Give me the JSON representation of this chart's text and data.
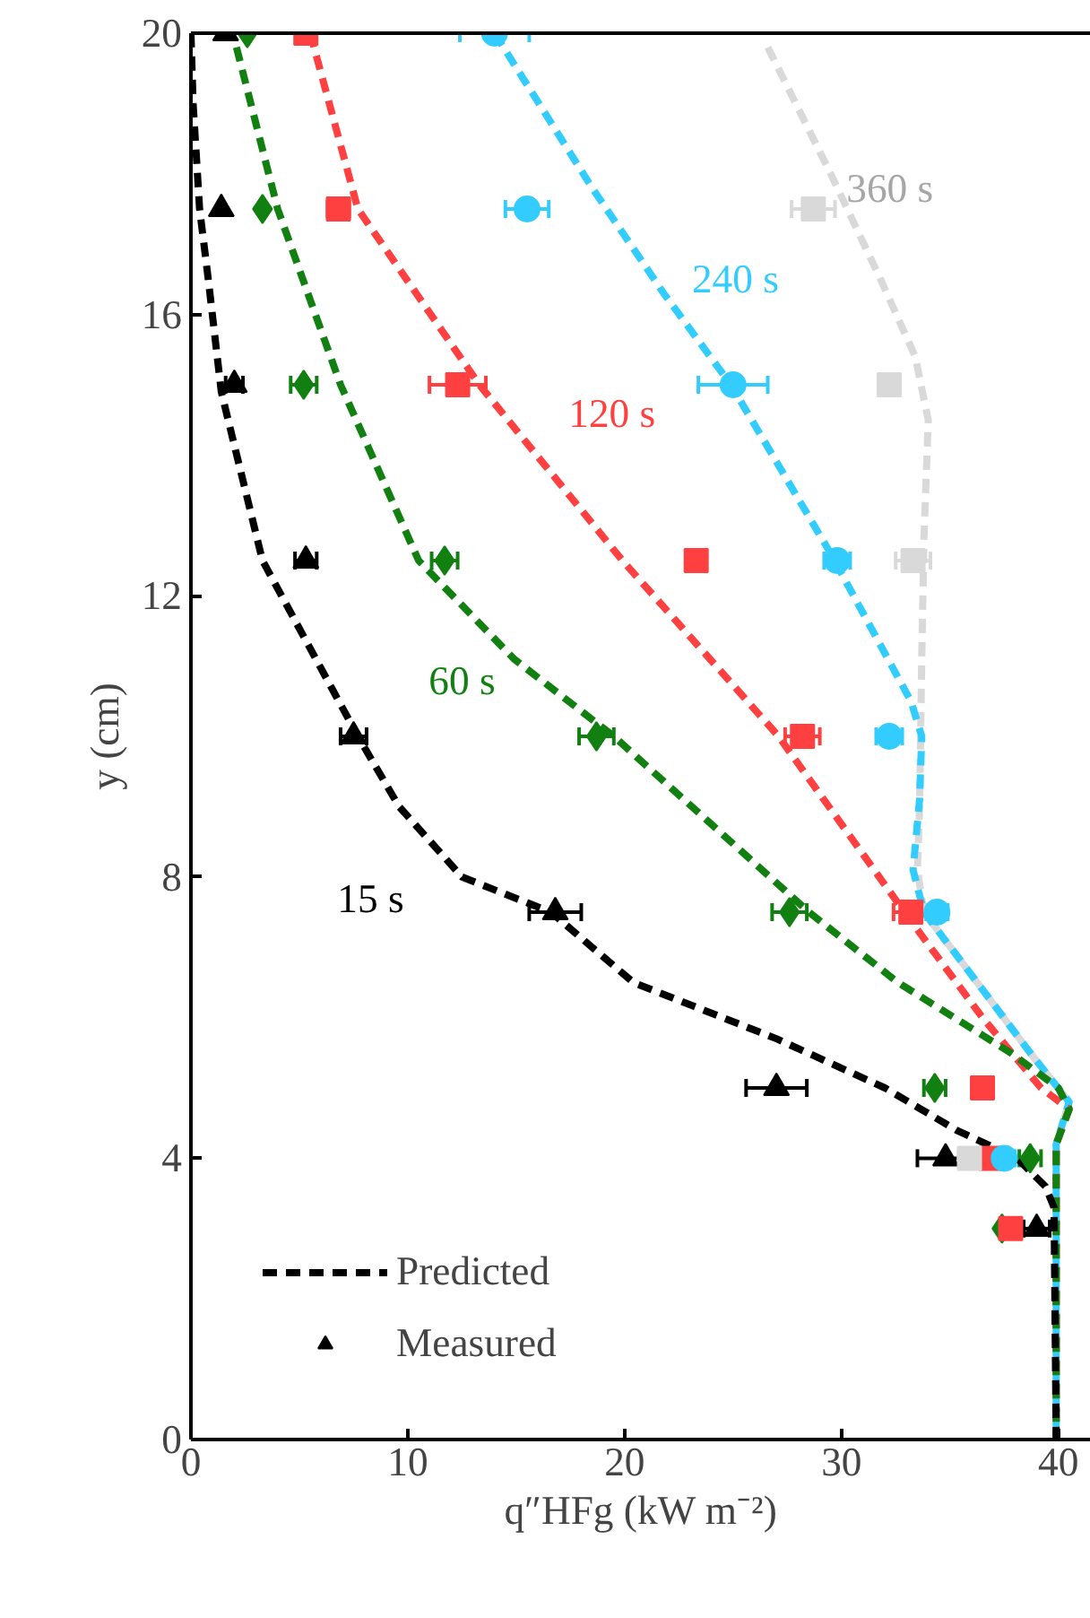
{
  "chart_data": {
    "type": "scatter",
    "xlabel": "q″HFg (kW m⁻²)",
    "ylabel": "y (cm)",
    "xlim": [
      0,
      41.5
    ],
    "ylim": [
      0,
      20
    ],
    "xticks": [
      0,
      10,
      20,
      30,
      40
    ],
    "yticks": [
      0,
      4,
      8,
      12,
      16,
      20
    ],
    "grid": false,
    "legend": "bottom left",
    "series": [
      {
        "type": "line",
        "line_style": "dashed",
        "color": "#d9d9d9",
        "x": [
          26.6,
          29.5,
          31.8,
          33.4,
          34.0,
          33.8,
          33.7,
          33.6,
          33.5,
          33.8,
          36.5,
          38.7,
          40.5,
          39.9,
          39.9
        ],
        "values": [
          19.8,
          18,
          16.5,
          15.4,
          14.5,
          12.8,
          11.1,
          9,
          8.1,
          7.5,
          6.4,
          5.5,
          4.8,
          4.2,
          0
        ]
      },
      {
        "type": "line",
        "line_style": "dashed",
        "color": "#33ccff",
        "x": [
          14.0,
          18.5,
          21.8,
          24.9,
          29.5,
          33.2,
          33.7,
          33.6,
          33.3,
          33.8,
          36.5,
          38.7,
          40.5,
          39.9,
          39.9
        ],
        "values": [
          20,
          17.8,
          16.3,
          15,
          12.6,
          10.5,
          10,
          9.1,
          8.1,
          7.5,
          6.4,
          5.5,
          4.8,
          4.2,
          0
        ]
      },
      {
        "type": "line",
        "line_style": "dashed",
        "color": "#ff4040",
        "x": [
          5.5,
          7.7,
          13.3,
          19.9,
          27.1,
          32.9,
          36.5,
          39.2,
          40.5,
          39.9,
          39.9
        ],
        "values": [
          20,
          17.5,
          15,
          12.5,
          10,
          7.5,
          6,
          5,
          4.7,
          4.2,
          0
        ]
      },
      {
        "type": "line",
        "line_style": "dashed",
        "color": "#118011",
        "x": [
          2.1,
          4.0,
          6.9,
          10.5,
          14.9,
          19.5,
          28.5,
          32.6,
          37.8,
          40.0,
          40.5,
          39.9,
          39.9
        ],
        "values": [
          19.8,
          17.5,
          15,
          12.5,
          11.1,
          10,
          7.5,
          6.5,
          5.5,
          5,
          4.7,
          4.2,
          0
        ]
      },
      {
        "name": "Predicted",
        "type": "line",
        "line_style": "dashed",
        "color": "#000000",
        "x": [
          0,
          0.1,
          0.4,
          0.8,
          1.4,
          3.3,
          7.7,
          9.6,
          12.5,
          16.6,
          20.4,
          27,
          32,
          35.3,
          38.1,
          39.4,
          39.8,
          39.9
        ],
        "values": [
          20,
          19,
          17.5,
          16.5,
          14.9,
          12.5,
          10,
          9,
          8,
          7.5,
          6.5,
          5.7,
          5,
          4.4,
          4,
          3.6,
          3.3,
          0
        ]
      },
      {
        "name": "Measured",
        "marker": "triangle",
        "color": "#000000",
        "x": [
          1.6,
          1.4,
          2.0,
          5.3,
          7.5,
          16.8,
          27.0,
          34.8,
          39.0
        ],
        "values": [
          20,
          17.5,
          15,
          12.5,
          10,
          7.5,
          5,
          4,
          3
        ],
        "xerrors": [
          null,
          null,
          0.4,
          0.5,
          0.6,
          1.2,
          1.4,
          1.3,
          0.6
        ]
      },
      {
        "marker": "diamond",
        "color": "#118011",
        "x": [
          2.6,
          3.3,
          5.2,
          11.7,
          18.7,
          27.6,
          34.3,
          38.7,
          37.4
        ],
        "values": [
          20,
          17.5,
          15,
          12.5,
          10,
          7.5,
          5,
          4,
          3
        ],
        "xerrors": [
          null,
          null,
          0.6,
          0.6,
          0.8,
          0.8,
          0.5,
          0.5,
          null
        ]
      },
      {
        "marker": "square",
        "color": "#ff4040",
        "x": [
          5.3,
          6.8,
          12.3,
          23.3,
          28.2,
          33.2,
          36.5,
          36.9,
          37.8
        ],
        "values": [
          20,
          17.5,
          15,
          12.5,
          10,
          7.5,
          5,
          4,
          3
        ],
        "xerrors": [
          null,
          0.5,
          1.3,
          null,
          0.8,
          0.8,
          null,
          null,
          null
        ]
      },
      {
        "marker": "circle",
        "color": "#33ccff",
        "x": [
          14.0,
          15.5,
          25.0,
          29.8,
          32.2,
          34.4,
          37.5
        ],
        "values": [
          20,
          17.5,
          15,
          12.5,
          10,
          7.5,
          4
        ],
        "xerrors": [
          1.6,
          1.0,
          1.6,
          0.6,
          0.6,
          0.5,
          0.5
        ]
      },
      {
        "marker": "square",
        "color": "#d9d9d9",
        "x": [
          28.7,
          32.2,
          33.3,
          35.9
        ],
        "values": [
          17.5,
          15,
          12.5,
          4
        ],
        "xerrors": [
          1.0,
          null,
          0.8,
          0.5
        ]
      }
    ],
    "annotations": [
      {
        "text": "360 s",
        "x": 29.5,
        "y": 18
      },
      {
        "text": "240 s",
        "x": 21.8,
        "y": 16.3
      },
      {
        "text": "120 s",
        "x": 13.3,
        "y": 15
      },
      {
        "text": "60 s",
        "x": 14.9,
        "y": 11.1
      },
      {
        "text": "15 s",
        "x": 12.5,
        "y": 8
      }
    ]
  }
}
